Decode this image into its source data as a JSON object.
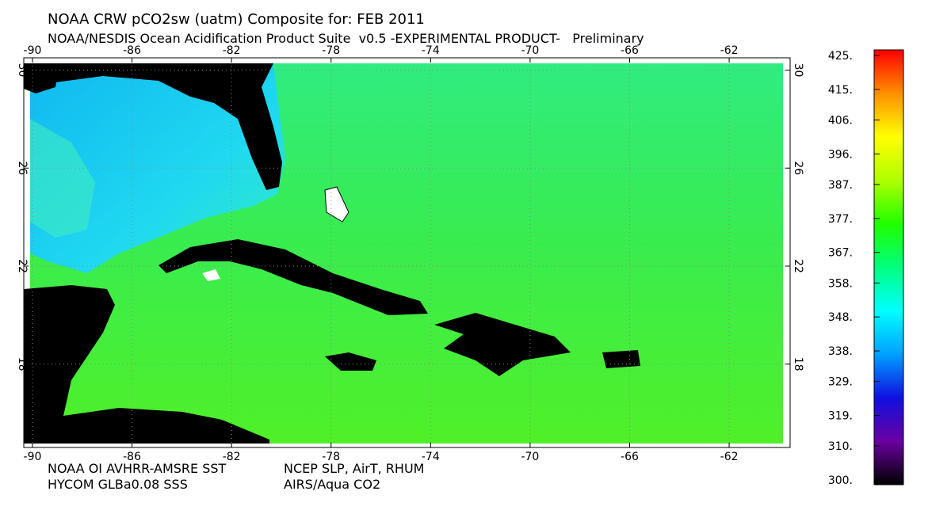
{
  "header": {
    "title": "NOAA CRW pCO2sw (uatm) Composite for: FEB 2011",
    "subtitle": "NOAA/NESDIS Ocean Acidification Product Suite  v0.5 -EXPERIMENTAL PRODUCT-   Preliminary"
  },
  "map": {
    "xlim": [
      -90.35,
      -59.55
    ],
    "ylim": [
      14.6,
      30.5
    ],
    "xticks": [
      -90,
      -86,
      -82,
      -78,
      -74,
      -70,
      -66,
      -62
    ],
    "yticks": [
      30,
      26,
      22,
      18
    ],
    "grid": true
  },
  "colorbar": {
    "colors": [
      "#000000",
      "#6a00a0",
      "#1010e0",
      "#00a0ff",
      "#00ffff",
      "#00ff80",
      "#20ff00",
      "#b0ff00",
      "#ffff00",
      "#ff9000",
      "#ff0000"
    ],
    "ticks": [
      {
        "value": 425,
        "label": "425."
      },
      {
        "value": 415,
        "label": "415."
      },
      {
        "value": 406,
        "label": "406."
      },
      {
        "value": 396,
        "label": "396."
      },
      {
        "value": 387,
        "label": "387."
      },
      {
        "value": 377,
        "label": "377."
      },
      {
        "value": 367,
        "label": "367."
      },
      {
        "value": 358,
        "label": "358."
      },
      {
        "value": 348,
        "label": "348."
      },
      {
        "value": 338,
        "label": "338."
      },
      {
        "value": 329,
        "label": "329."
      },
      {
        "value": 319,
        "label": "319."
      },
      {
        "value": 310,
        "label": "310."
      },
      {
        "value": 300,
        "label": "300."
      }
    ]
  },
  "footer": {
    "sources": [
      "NOAA OI AVHRR-AMSRE SST",
      "HYCOM GLBa0.08 SSS",
      "NCEP SLP, AirT, RHUM",
      "AIRS/Aqua CO2"
    ]
  }
}
